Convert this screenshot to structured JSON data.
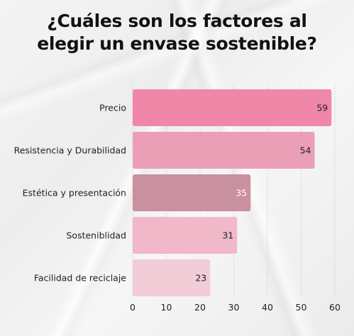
{
  "title_lines": [
    "¿Cuáles son los factores al",
    "elegir un envase sostenible?"
  ],
  "chart_data": {
    "type": "bar",
    "orientation": "horizontal",
    "title": "¿Cuáles son los factores al elegir un envase sostenible?",
    "categories": [
      "Precio",
      "Resistencia y Durabilidad",
      "Estética y presentación",
      "Sosteniblidad",
      "Facilidad de reciclaje"
    ],
    "values": [
      59,
      54,
      35,
      31,
      23
    ],
    "bar_colors": [
      "#f087a9",
      "#eb9fb6",
      "#c9909f",
      "#f0b8c9",
      "#f2ccd7"
    ],
    "value_label_colors": [
      "#222222",
      "#222222",
      "#ffffff",
      "#222222",
      "#222222"
    ],
    "xlim": [
      0,
      60
    ],
    "xticks": [
      0,
      10,
      20,
      30,
      40,
      50,
      60
    ],
    "grid": "vertical-dotted"
  }
}
